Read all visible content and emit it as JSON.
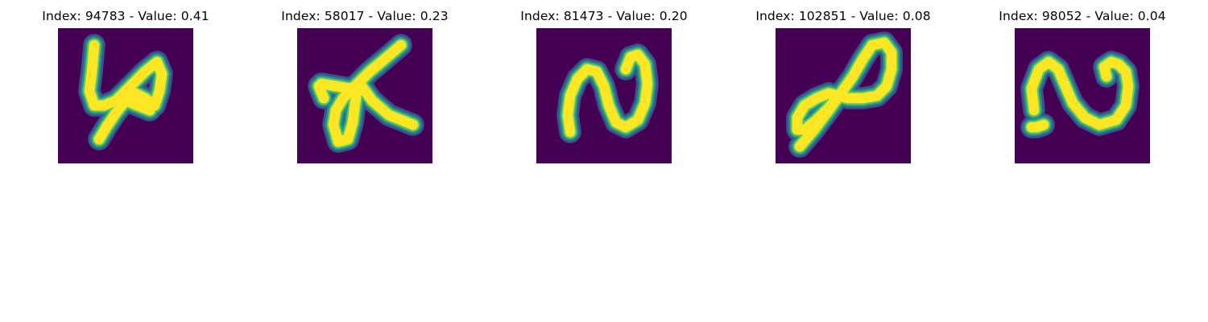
{
  "colors": {
    "background": "#440154",
    "stroke_core": "#fde725",
    "stroke_mid": "#5ec962",
    "stroke_edge": "#21918c",
    "stroke_halo": "#3b528b"
  },
  "panels": [
    {
      "title": "Index: 94783 - Value: 0.41",
      "index": 94783,
      "value": 0.41
    },
    {
      "title": "Index: 58017 - Value: 0.23",
      "index": 58017,
      "value": 0.23
    },
    {
      "title": "Index: 81473 - Value: 0.20",
      "index": 81473,
      "value": 0.2
    },
    {
      "title": "Index: 102851 - Value: 0.08",
      "index": 102851,
      "value": 0.08
    },
    {
      "title": "Index: 98052 - Value: 0.04",
      "index": 98052,
      "value": 0.04
    }
  ]
}
